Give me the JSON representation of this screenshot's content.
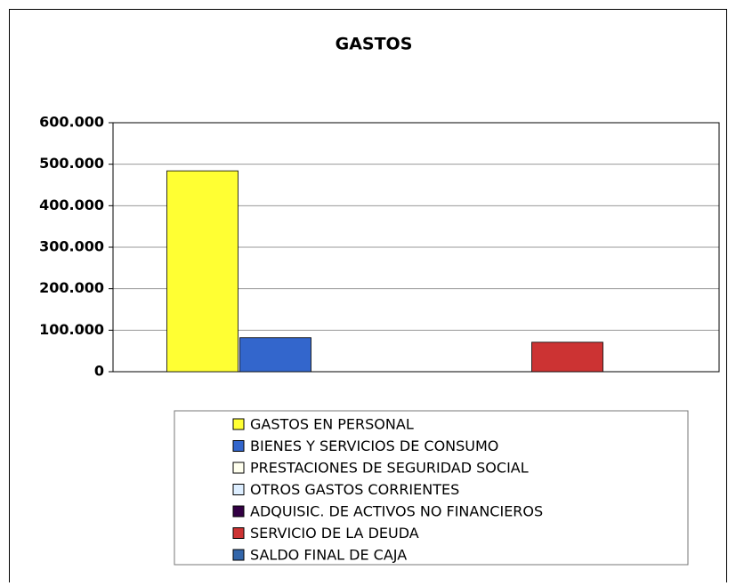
{
  "chart_data": {
    "type": "bar",
    "title": "GASTOS",
    "categories": [
      null
    ],
    "series": [
      {
        "name": "GASTOS EN PERSONAL",
        "color": "#ffff33",
        "values": [
          484000
        ]
      },
      {
        "name": "BIENES Y SERVICIOS DE CONSUMO",
        "color": "#3366cc",
        "values": [
          82000
        ]
      },
      {
        "name": "PRESTACIONES DE SEGURIDAD SOCIAL",
        "color": "#ffffee",
        "values": [
          0
        ]
      },
      {
        "name": "OTROS GASTOS CORRIENTES",
        "color": "#ddeeff",
        "values": [
          0
        ]
      },
      {
        "name": "ADQUISIC. DE ACTIVOS NO FINANCIEROS",
        "color": "#330044",
        "values": [
          0
        ]
      },
      {
        "name": "SERVICIO DE LA DEUDA",
        "color": "#cc3333",
        "values": [
          71000
        ]
      },
      {
        "name": "SALDO FINAL DE CAJA",
        "color": "#3366aa",
        "values": [
          0
        ]
      }
    ],
    "ylim": [
      0,
      600000
    ],
    "yticks": [
      0,
      {
        "value": 100000,
        "label": "100.000"
      },
      {
        "value": 200000,
        "label": "200.000"
      },
      {
        "value": 300000,
        "label": "300.000"
      },
      {
        "value": 400000,
        "label": "400.000"
      },
      {
        "value": 500000,
        "label": "500.000"
      },
      {
        "value": 600000,
        "label": "600.000"
      }
    ],
    "grid": true,
    "legend": "bottom"
  }
}
